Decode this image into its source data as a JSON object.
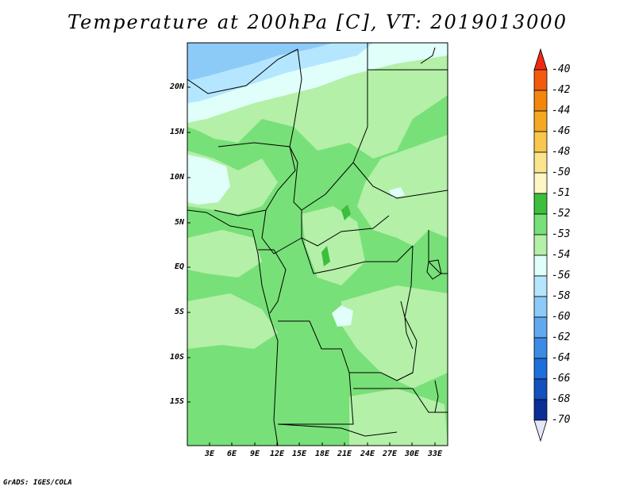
{
  "title": "Temperature at 200hPa [C], VT: 2019013000",
  "footer": "GrADS: IGES/COLA",
  "map": {
    "lat_ticks": [
      "20N",
      "15N",
      "10N",
      "5N",
      "EQ",
      "5S",
      "10S",
      "15S"
    ],
    "lon_ticks": [
      "3E",
      "6E",
      "9E",
      "12E",
      "15E",
      "18E",
      "21E",
      "24E",
      "27E",
      "30E",
      "33E"
    ]
  },
  "colorbar": {
    "labels": [
      "-40",
      "-42",
      "-44",
      "-46",
      "-48",
      "-50",
      "-51",
      "-52",
      "-53",
      "-54",
      "-56",
      "-58",
      "-60",
      "-62",
      "-64",
      "-66",
      "-68",
      "-70"
    ],
    "colors": [
      "#f02a10",
      "#f25a0e",
      "#f4860c",
      "#f5a823",
      "#f8c84e",
      "#fae58d",
      "#fdf7c6",
      "#3cbf3c",
      "#78e078",
      "#b4f0a8",
      "#e0fffa",
      "#b4e6ff",
      "#8ccaf8",
      "#62a8f0",
      "#3c8ce6",
      "#1e6edc",
      "#1450be",
      "#0a2f96",
      "#0a1a6e"
    ],
    "cap_top_color": "#f02a10",
    "cap_bottom_color": "#e6e6fa"
  },
  "fill_colors": {
    "c53": "#78e078",
    "c54": "#b4f0a8",
    "c56": "#e0fffa",
    "c58": "#b4e6ff",
    "c60": "#8ccaf8",
    "c52": "#3cbf3c"
  }
}
